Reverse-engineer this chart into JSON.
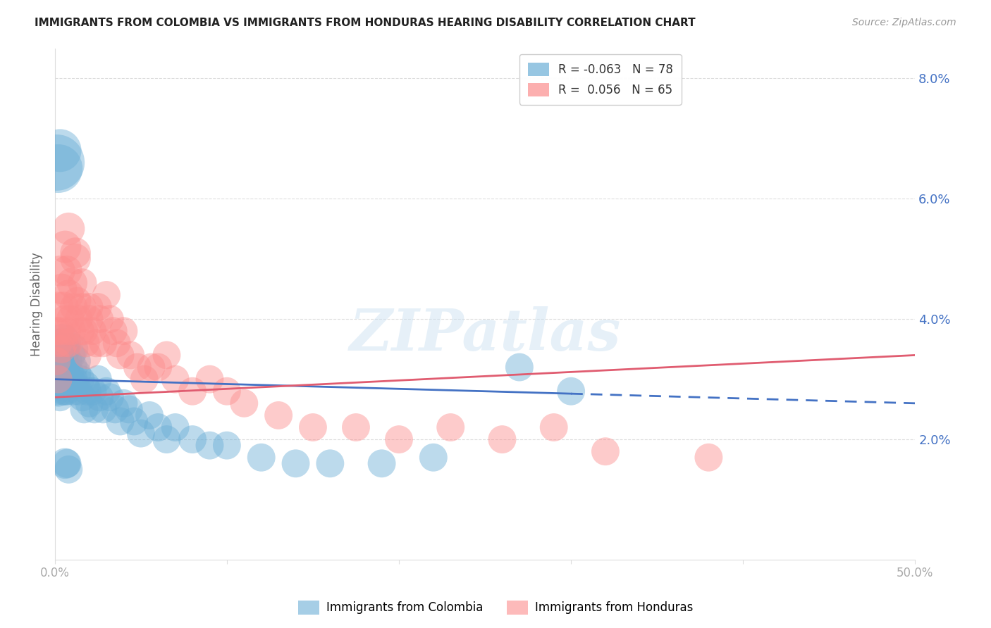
{
  "title": "IMMIGRANTS FROM COLOMBIA VS IMMIGRANTS FROM HONDURAS HEARING DISABILITY CORRELATION CHART",
  "source": "Source: ZipAtlas.com",
  "ylabel": "Hearing Disability",
  "yticks": [
    0.0,
    0.02,
    0.04,
    0.06,
    0.08
  ],
  "ytick_labels": [
    "",
    "2.0%",
    "4.0%",
    "6.0%",
    "8.0%"
  ],
  "xlim": [
    0.0,
    0.5
  ],
  "ylim": [
    0.0,
    0.085
  ],
  "colombia_color": "#6baed6",
  "honduras_color": "#fc8d8d",
  "colombia_line_color": "#4472c4",
  "honduras_line_color": "#e05c70",
  "colombia_R": -0.063,
  "colombia_N": 78,
  "honduras_R": 0.056,
  "honduras_N": 65,
  "watermark": "ZIPatlas",
  "legend_label1": "Immigrants from Colombia",
  "legend_label2": "Immigrants from Honduras",
  "colombia_x": [
    0.001,
    0.001,
    0.001,
    0.001,
    0.002,
    0.002,
    0.002,
    0.002,
    0.002,
    0.003,
    0.003,
    0.003,
    0.003,
    0.004,
    0.004,
    0.004,
    0.005,
    0.005,
    0.005,
    0.006,
    0.006,
    0.006,
    0.007,
    0.007,
    0.007,
    0.008,
    0.008,
    0.009,
    0.009,
    0.01,
    0.01,
    0.011,
    0.011,
    0.012,
    0.012,
    0.013,
    0.014,
    0.015,
    0.016,
    0.017,
    0.018,
    0.019,
    0.02,
    0.022,
    0.023,
    0.025,
    0.026,
    0.028,
    0.03,
    0.032,
    0.035,
    0.038,
    0.04,
    0.043,
    0.046,
    0.05,
    0.055,
    0.06,
    0.065,
    0.07,
    0.08,
    0.09,
    0.1,
    0.12,
    0.14,
    0.16,
    0.19,
    0.22,
    0.27,
    0.3,
    0.001,
    0.002,
    0.003,
    0.004,
    0.005,
    0.006,
    0.007,
    0.008
  ],
  "colombia_y": [
    0.03,
    0.032,
    0.028,
    0.035,
    0.03,
    0.033,
    0.028,
    0.031,
    0.036,
    0.034,
    0.029,
    0.031,
    0.027,
    0.036,
    0.032,
    0.029,
    0.033,
    0.03,
    0.028,
    0.031,
    0.035,
    0.028,
    0.033,
    0.03,
    0.028,
    0.031,
    0.029,
    0.034,
    0.03,
    0.035,
    0.032,
    0.028,
    0.03,
    0.033,
    0.029,
    0.031,
    0.028,
    0.03,
    0.027,
    0.025,
    0.029,
    0.028,
    0.026,
    0.028,
    0.025,
    0.03,
    0.027,
    0.025,
    0.028,
    0.027,
    0.025,
    0.023,
    0.026,
    0.025,
    0.023,
    0.021,
    0.024,
    0.022,
    0.02,
    0.022,
    0.02,
    0.019,
    0.019,
    0.017,
    0.016,
    0.016,
    0.016,
    0.017,
    0.032,
    0.028,
    0.066,
    0.065,
    0.068,
    0.036,
    0.035,
    0.016,
    0.016,
    0.015
  ],
  "colombia_size": [
    15,
    15,
    15,
    15,
    20,
    20,
    18,
    18,
    15,
    22,
    18,
    15,
    15,
    18,
    15,
    15,
    18,
    15,
    15,
    18,
    15,
    15,
    18,
    15,
    15,
    18,
    15,
    18,
    15,
    20,
    18,
    15,
    15,
    18,
    15,
    15,
    15,
    15,
    15,
    15,
    15,
    15,
    15,
    15,
    15,
    15,
    15,
    15,
    15,
    15,
    15,
    15,
    15,
    15,
    15,
    15,
    15,
    15,
    15,
    15,
    15,
    15,
    15,
    15,
    15,
    15,
    15,
    15,
    15,
    15,
    60,
    45,
    35,
    28,
    22,
    18,
    16,
    15
  ],
  "honduras_x": [
    0.001,
    0.001,
    0.002,
    0.002,
    0.002,
    0.003,
    0.003,
    0.004,
    0.004,
    0.005,
    0.005,
    0.006,
    0.006,
    0.007,
    0.007,
    0.008,
    0.008,
    0.009,
    0.01,
    0.01,
    0.011,
    0.012,
    0.013,
    0.014,
    0.015,
    0.016,
    0.017,
    0.018,
    0.019,
    0.02,
    0.022,
    0.024,
    0.025,
    0.026,
    0.028,
    0.03,
    0.032,
    0.034,
    0.036,
    0.038,
    0.04,
    0.044,
    0.048,
    0.052,
    0.056,
    0.06,
    0.065,
    0.07,
    0.08,
    0.09,
    0.1,
    0.11,
    0.13,
    0.15,
    0.175,
    0.2,
    0.23,
    0.26,
    0.29,
    0.32,
    0.38,
    0.008,
    0.012,
    0.016,
    0.02
  ],
  "honduras_y": [
    0.038,
    0.033,
    0.042,
    0.036,
    0.03,
    0.048,
    0.038,
    0.045,
    0.035,
    0.042,
    0.036,
    0.052,
    0.04,
    0.048,
    0.038,
    0.044,
    0.036,
    0.04,
    0.046,
    0.038,
    0.042,
    0.05,
    0.043,
    0.04,
    0.038,
    0.042,
    0.038,
    0.036,
    0.034,
    0.042,
    0.038,
    0.036,
    0.042,
    0.04,
    0.036,
    0.044,
    0.04,
    0.038,
    0.036,
    0.034,
    0.038,
    0.034,
    0.032,
    0.03,
    0.032,
    0.032,
    0.034,
    0.03,
    0.028,
    0.03,
    0.028,
    0.026,
    0.024,
    0.022,
    0.022,
    0.02,
    0.022,
    0.02,
    0.022,
    0.018,
    0.017,
    0.055,
    0.051,
    0.046,
    0.04
  ],
  "honduras_size": [
    15,
    15,
    18,
    15,
    15,
    18,
    15,
    18,
    15,
    18,
    15,
    20,
    15,
    18,
    15,
    18,
    15,
    15,
    18,
    15,
    15,
    18,
    15,
    15,
    15,
    15,
    15,
    15,
    15,
    15,
    15,
    15,
    15,
    15,
    15,
    15,
    15,
    15,
    15,
    15,
    15,
    15,
    15,
    15,
    15,
    15,
    15,
    15,
    15,
    15,
    15,
    15,
    15,
    15,
    15,
    15,
    15,
    15,
    15,
    15,
    15,
    20,
    18,
    16,
    15
  ]
}
